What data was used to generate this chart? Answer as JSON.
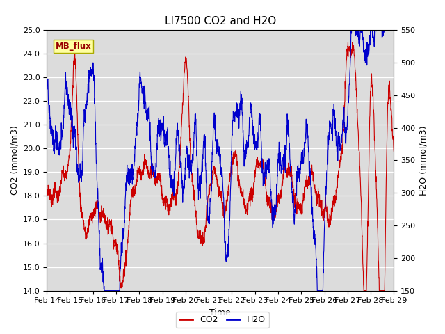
{
  "title": "LI7500 CO2 and H2O",
  "xlabel": "Time",
  "ylabel_left": "CO2 (mmol/m3)",
  "ylabel_right": "H2O (mmol/m3)",
  "ylim_left": [
    14.0,
    25.0
  ],
  "ylim_right": [
    150,
    550
  ],
  "yticks_left": [
    14.0,
    15.0,
    16.0,
    17.0,
    18.0,
    19.0,
    20.0,
    21.0,
    22.0,
    23.0,
    24.0,
    25.0
  ],
  "yticks_right": [
    150,
    200,
    250,
    300,
    350,
    400,
    450,
    500,
    550
  ],
  "xtick_labels": [
    "Feb 14",
    "Feb 15",
    "Feb 16",
    "Feb 17",
    "Feb 18",
    "Feb 19",
    "Feb 20",
    "Feb 21",
    "Feb 22",
    "Feb 23",
    "Feb 24",
    "Feb 25",
    "Feb 26",
    "Feb 27",
    "Feb 28",
    "Feb 29"
  ],
  "co2_color": "#CC0000",
  "h2o_color": "#0000CC",
  "bg_color": "#DCDCDC",
  "fig_bg": "#FFFFFF",
  "annotation_text": "MB_flux",
  "annotation_bg": "#FFFFA0",
  "annotation_border": "#AAAA00",
  "linewidth": 0.8,
  "title_fontsize": 11,
  "axis_label_fontsize": 9,
  "tick_fontsize": 8,
  "legend_fontsize": 9
}
